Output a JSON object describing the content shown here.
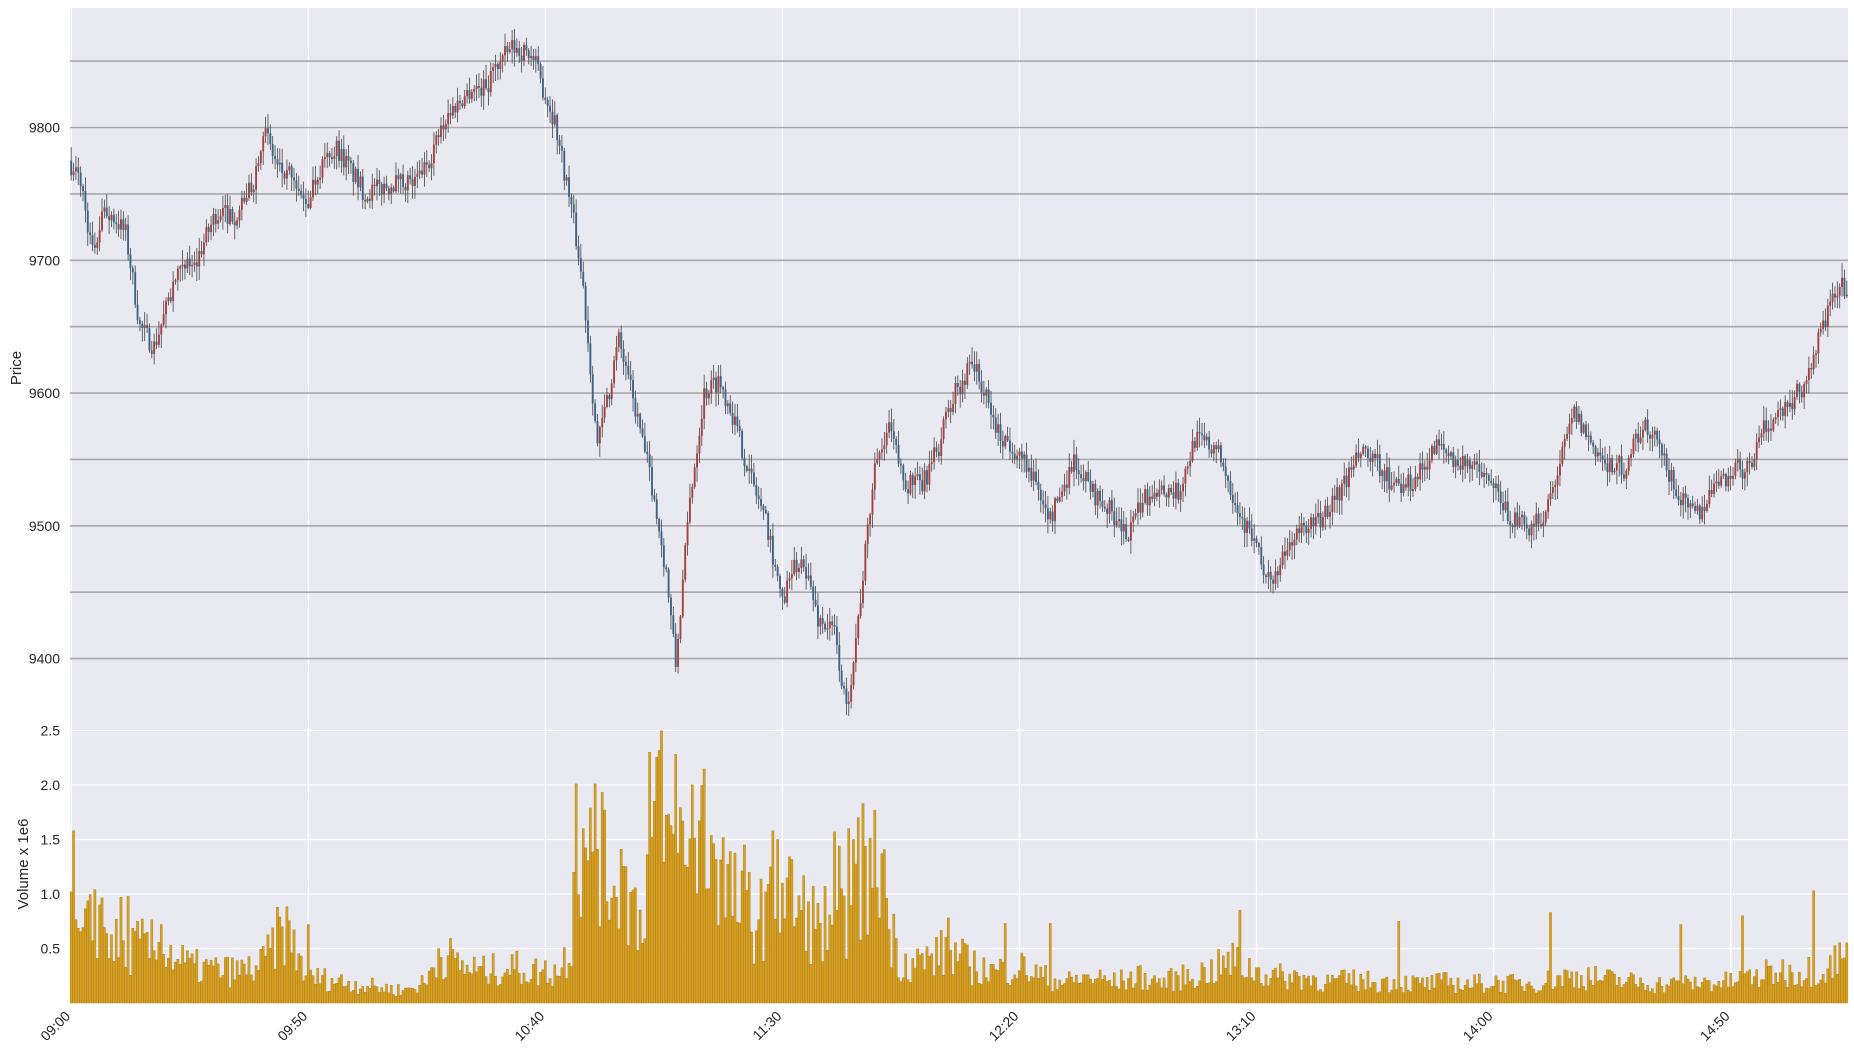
{
  "chart_data": {
    "type": "candlestick",
    "up_color": "#a3413c",
    "down_color": "#3b6584",
    "volume_color": "#d8a123",
    "background_color": "#e9e9f1",
    "price_panel": {
      "ylabel": "Price",
      "ylim": [
        9350,
        9890
      ],
      "y_ticks": [
        9400,
        9500,
        9600,
        9700,
        9800
      ],
      "horizontal_lines": [
        9400,
        9450,
        9500,
        9550,
        9600,
        9650,
        9700,
        9750,
        9800,
        9850
      ],
      "control_points": [
        [
          0,
          9775
        ],
        [
          5,
          9760
        ],
        [
          10,
          9705
        ],
        [
          15,
          9740
        ],
        [
          20,
          9730
        ],
        [
          24,
          9720
        ],
        [
          30,
          9650
        ],
        [
          36,
          9635
        ],
        [
          45,
          9685
        ],
        [
          55,
          9705
        ],
        [
          62,
          9735
        ],
        [
          72,
          9735
        ],
        [
          78,
          9760
        ],
        [
          82,
          9800
        ],
        [
          88,
          9770
        ],
        [
          100,
          9745
        ],
        [
          106,
          9770
        ],
        [
          113,
          9785
        ],
        [
          125,
          9750
        ],
        [
          140,
          9760
        ],
        [
          148,
          9760
        ],
        [
          160,
          9810
        ],
        [
          170,
          9830
        ],
        [
          175,
          9830
        ],
        [
          180,
          9845
        ],
        [
          187,
          9860
        ],
        [
          195,
          9855
        ],
        [
          205,
          9805
        ],
        [
          212,
          9740
        ],
        [
          217,
          9680
        ],
        [
          223,
          9560
        ],
        [
          232,
          9640
        ],
        [
          240,
          9580
        ],
        [
          246,
          9530
        ],
        [
          252,
          9465
        ],
        [
          256,
          9395
        ],
        [
          262,
          9520
        ],
        [
          268,
          9600
        ],
        [
          274,
          9610
        ],
        [
          279,
          9590
        ],
        [
          287,
          9540
        ],
        [
          293,
          9510
        ],
        [
          298,
          9470
        ],
        [
          301,
          9440
        ],
        [
          305,
          9465
        ],
        [
          310,
          9475
        ],
        [
          316,
          9430
        ],
        [
          323,
          9420
        ],
        [
          328,
          9360
        ],
        [
          333,
          9430
        ],
        [
          340,
          9545
        ],
        [
          346,
          9575
        ],
        [
          352,
          9535
        ],
        [
          360,
          9530
        ],
        [
          367,
          9560
        ],
        [
          372,
          9595
        ],
        [
          377,
          9610
        ],
        [
          380,
          9630
        ],
        [
          384,
          9610
        ],
        [
          392,
          9570
        ],
        [
          398,
          9560
        ],
        [
          405,
          9545
        ],
        [
          414,
          9505
        ],
        [
          424,
          9550
        ],
        [
          432,
          9525
        ],
        [
          440,
          9510
        ],
        [
          447,
          9490
        ],
        [
          452,
          9515
        ],
        [
          458,
          9530
        ],
        [
          468,
          9525
        ],
        [
          475,
          9565
        ],
        [
          482,
          9560
        ],
        [
          487,
          9545
        ],
        [
          495,
          9505
        ],
        [
          501,
          9485
        ],
        [
          506,
          9460
        ],
        [
          510,
          9465
        ],
        [
          516,
          9490
        ],
        [
          522,
          9500
        ],
        [
          528,
          9505
        ],
        [
          536,
          9525
        ],
        [
          545,
          9555
        ],
        [
          553,
          9545
        ],
        [
          560,
          9525
        ],
        [
          568,
          9535
        ],
        [
          577,
          9560
        ],
        [
          585,
          9550
        ],
        [
          595,
          9540
        ],
        [
          602,
          9525
        ],
        [
          608,
          9505
        ],
        [
          615,
          9500
        ],
        [
          622,
          9505
        ],
        [
          628,
          9540
        ],
        [
          635,
          9585
        ],
        [
          643,
          9560
        ],
        [
          650,
          9545
        ],
        [
          656,
          9545
        ],
        [
          664,
          9575
        ],
        [
          670,
          9560
        ],
        [
          676,
          9535
        ],
        [
          683,
          9510
        ],
        [
          688,
          9510
        ],
        [
          694,
          9530
        ],
        [
          702,
          9540
        ],
        [
          708,
          9545
        ],
        [
          714,
          9570
        ],
        [
          721,
          9585
        ],
        [
          727,
          9595
        ],
        [
          732,
          9605
        ],
        [
          738,
          9640
        ],
        [
          743,
          9665
        ],
        [
          748,
          9680
        ]
      ]
    },
    "volume_panel": {
      "ylabel": "Volume x 1e6",
      "ylim": [
        0,
        2.55
      ],
      "y_ticks": [
        0.5,
        1.0,
        1.5,
        2.0,
        2.5
      ],
      "y_tick_labels": [
        "0.5",
        "1.0",
        "1.5",
        "2.0",
        "2.5"
      ],
      "control_points": [
        [
          0,
          1.02
        ],
        [
          3,
          0.55
        ],
        [
          12,
          0.85
        ],
        [
          20,
          0.5
        ],
        [
          30,
          0.55
        ],
        [
          40,
          0.5
        ],
        [
          50,
          0.35
        ],
        [
          60,
          0.32
        ],
        [
          70,
          0.3
        ],
        [
          80,
          0.35
        ],
        [
          90,
          0.72
        ],
        [
          100,
          0.25
        ],
        [
          110,
          0.22
        ],
        [
          120,
          0.18
        ],
        [
          130,
          0.15
        ],
        [
          140,
          0.12
        ],
        [
          150,
          0.2
        ],
        [
          155,
          0.5
        ],
        [
          165,
          0.35
        ],
        [
          175,
          0.3
        ],
        [
          185,
          0.35
        ],
        [
          195,
          0.3
        ],
        [
          205,
          0.3
        ],
        [
          210,
          0.5
        ],
        [
          213,
          0.9
        ],
        [
          218,
          1.25
        ],
        [
          222,
          1.6
        ],
        [
          226,
          1.2
        ],
        [
          232,
          1.3
        ],
        [
          236,
          1.0
        ],
        [
          240,
          0.8
        ],
        [
          245,
          1.55
        ],
        [
          248,
          1.9
        ],
        [
          253,
          1.4
        ],
        [
          258,
          1.5
        ],
        [
          262,
          1.3
        ],
        [
          266,
          1.75
        ],
        [
          272,
          1.5
        ],
        [
          276,
          1.15
        ],
        [
          282,
          0.9
        ],
        [
          287,
          0.75
        ],
        [
          292,
          0.85
        ],
        [
          298,
          0.9
        ],
        [
          302,
          1.1
        ],
        [
          306,
          0.9
        ],
        [
          310,
          0.85
        ],
        [
          316,
          0.65
        ],
        [
          322,
          0.55
        ],
        [
          326,
          0.8
        ],
        [
          330,
          1.0
        ],
        [
          334,
          1.1
        ],
        [
          338,
          1.2
        ],
        [
          342,
          1.5
        ],
        [
          345,
          0.75
        ],
        [
          350,
          0.4
        ],
        [
          360,
          0.4
        ],
        [
          370,
          0.5
        ],
        [
          380,
          0.35
        ],
        [
          390,
          0.3
        ],
        [
          400,
          0.35
        ],
        [
          410,
          0.25
        ],
        [
          420,
          0.2
        ],
        [
          430,
          0.25
        ],
        [
          440,
          0.2
        ],
        [
          450,
          0.25
        ],
        [
          460,
          0.2
        ],
        [
          470,
          0.25
        ],
        [
          480,
          0.3
        ],
        [
          490,
          0.4
        ],
        [
          500,
          0.3
        ],
        [
          510,
          0.25
        ],
        [
          520,
          0.25
        ],
        [
          530,
          0.2
        ],
        [
          540,
          0.22
        ],
        [
          550,
          0.2
        ],
        [
          560,
          0.2
        ],
        [
          570,
          0.18
        ],
        [
          580,
          0.2
        ],
        [
          590,
          0.18
        ],
        [
          600,
          0.2
        ],
        [
          610,
          0.18
        ],
        [
          620,
          0.2
        ],
        [
          630,
          0.25
        ],
        [
          640,
          0.25
        ],
        [
          650,
          0.22
        ],
        [
          660,
          0.2
        ],
        [
          670,
          0.18
        ],
        [
          680,
          0.18
        ],
        [
          690,
          0.2
        ],
        [
          700,
          0.2
        ],
        [
          710,
          0.25
        ],
        [
          720,
          0.3
        ],
        [
          730,
          0.3
        ],
        [
          740,
          0.35
        ],
        [
          748,
          0.45
        ]
      ],
      "highlight_bars": [
        [
          0,
          1.02
        ],
        [
          1,
          1.58
        ],
        [
          10,
          1.04
        ],
        [
          12,
          0.9
        ],
        [
          21,
          0.97
        ],
        [
          24,
          0.98
        ],
        [
          32,
          0.65
        ],
        [
          38,
          0.72
        ],
        [
          100,
          0.72
        ],
        [
          212,
          1.2
        ],
        [
          213,
          2.01
        ],
        [
          216,
          1.6
        ],
        [
          221,
          2.01
        ],
        [
          225,
          1.77
        ],
        [
          232,
          1.41
        ],
        [
          234,
          1.25
        ],
        [
          244,
          2.3
        ],
        [
          246,
          1.85
        ],
        [
          254,
          1.55
        ],
        [
          255,
          2.28
        ],
        [
          258,
          1.67
        ],
        [
          262,
          2.0
        ],
        [
          284,
          1.45
        ],
        [
          286,
          1.2
        ],
        [
          296,
          1.58
        ],
        [
          298,
          1.5
        ],
        [
          300,
          1.1
        ],
        [
          313,
          1.07
        ],
        [
          318,
          1.07
        ],
        [
          322,
          1.57
        ],
        [
          324,
          1.44
        ],
        [
          328,
          1.6
        ],
        [
          330,
          1.5
        ],
        [
          332,
          1.7
        ],
        [
          334,
          1.83
        ],
        [
          370,
          0.78
        ],
        [
          394,
          0.73
        ],
        [
          413,
          0.73
        ],
        [
          493,
          0.85
        ],
        [
          560,
          0.75
        ],
        [
          624,
          0.83
        ],
        [
          679,
          0.72
        ],
        [
          705,
          0.8
        ],
        [
          735,
          1.03
        ]
      ]
    },
    "x_ticks": [
      "09:00",
      "09:50",
      "10:40",
      "11:30",
      "12:20",
      "13:10",
      "14:00",
      "14:50"
    ],
    "n_bars": 750,
    "bars_per_tick": 100
  }
}
